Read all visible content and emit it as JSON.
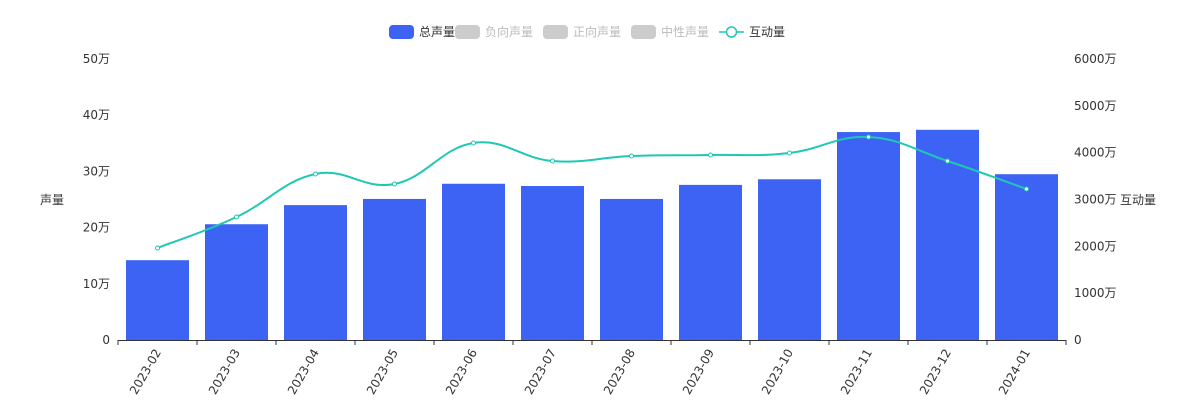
{
  "chart_data": {
    "type": "bar+line",
    "categories": [
      "2023-02",
      "2023-03",
      "2023-04",
      "2023-05",
      "2023-06",
      "2023-07",
      "2023-08",
      "2023-09",
      "2023-10",
      "2023-11",
      "2023-12",
      "2024-01"
    ],
    "legend": [
      {
        "name": "总声量",
        "active": true,
        "color": "#3d63f5",
        "kind": "bar"
      },
      {
        "name": "负向声量",
        "active": false,
        "color": "#cccccc",
        "kind": "bar"
      },
      {
        "name": "正向声量",
        "active": false,
        "color": "#cccccc",
        "kind": "bar"
      },
      {
        "name": "中性声量",
        "active": false,
        "color": "#cccccc",
        "kind": "bar"
      },
      {
        "name": "互动量",
        "active": true,
        "color": "#1fc8b4",
        "kind": "line"
      }
    ],
    "legend_position": "top-center",
    "series": [
      {
        "name": "总声量",
        "type": "bar",
        "axis": "left",
        "color": "#3d63f5",
        "values": [
          14.2,
          20.6,
          24.0,
          25.1,
          27.8,
          27.4,
          25.1,
          27.6,
          28.6,
          37.0,
          37.4,
          29.5
        ]
      },
      {
        "name": "互动量",
        "type": "line",
        "axis": "right",
        "smooth": true,
        "color": "#1fc8b4",
        "values": [
          1965,
          2627,
          3545,
          3331,
          4207,
          3822,
          3929,
          3950,
          3993,
          4335,
          3822,
          3224
        ]
      }
    ],
    "y_left": {
      "label": "声量",
      "range": [
        0,
        50
      ],
      "ticks": [
        "0",
        "10万",
        "20万",
        "30万",
        "40万",
        "50万"
      ]
    },
    "y_right": {
      "label": "互动量",
      "range": [
        0,
        6000
      ],
      "ticks": [
        "0",
        "1000万",
        "2000万",
        "3000万",
        "4000万",
        "5000万",
        "6000万"
      ]
    },
    "grid": false
  }
}
